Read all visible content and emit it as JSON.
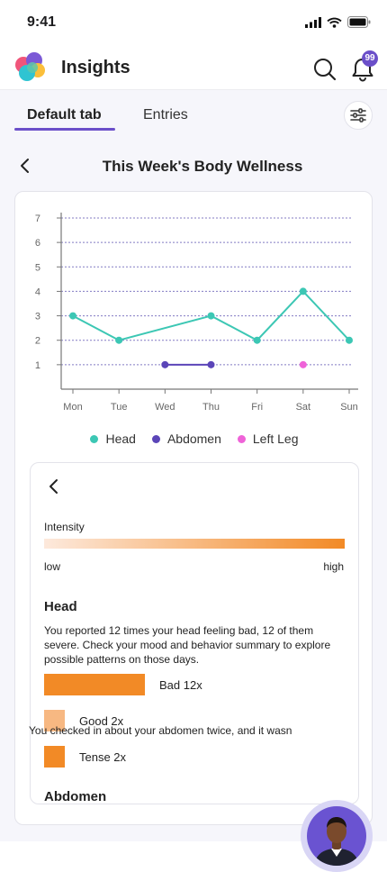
{
  "status_bar": {
    "time": "9:41"
  },
  "app": {
    "title": "Insights",
    "notification_count": "99"
  },
  "tabs": [
    {
      "label": "Default tab",
      "active": true
    },
    {
      "label": "Entries",
      "active": false
    }
  ],
  "section": {
    "title": "This Week's Body Wellness"
  },
  "chart_data": {
    "type": "line",
    "categories": [
      "Mon",
      "Tue",
      "Wed",
      "Thu",
      "Fri",
      "Sat",
      "Sun"
    ],
    "ylim": [
      0,
      7
    ],
    "yticks": [
      1,
      2,
      3,
      4,
      5,
      6,
      7
    ],
    "grid": true,
    "legend_position": "bottom",
    "series": [
      {
        "name": "Head",
        "color": "#3cc7b4",
        "values": [
          3,
          2,
          null,
          3,
          2,
          4,
          2
        ]
      },
      {
        "name": "Abdomen",
        "color": "#5b45b8",
        "values": [
          null,
          null,
          1,
          1,
          null,
          null,
          null
        ]
      },
      {
        "name": "Left Leg",
        "color": "#ef63d8",
        "values": [
          null,
          null,
          null,
          null,
          null,
          1,
          null
        ]
      }
    ]
  },
  "detail": {
    "intensity_label": "Intensity",
    "low_label": "low",
    "high_label": "high",
    "gradient_colors": [
      "#fde9dc",
      "#f28a26"
    ],
    "head_title": "Head",
    "head_description": "You reported 12 times your head feeling bad, 12 of them severe. Check your mood and behavior summary to explore possible patterns on those days.",
    "bars": [
      {
        "label": "Bad 12x",
        "count": 12,
        "color": "#f28a26"
      },
      {
        "label": "Good 2x",
        "count": 2,
        "color": "#f7b882"
      },
      {
        "label": "Tense 2x",
        "count": 2,
        "color": "#f28a26"
      }
    ],
    "abdomen_title": "Abdomen",
    "abdomen_description": "You checked in about your abdomen twice, and it wasn"
  },
  "icons": {
    "logo": "heart-cluster-logo",
    "search": "search-icon",
    "bell": "bell-icon",
    "filter": "sliders-icon",
    "back": "chevron-left-icon"
  }
}
